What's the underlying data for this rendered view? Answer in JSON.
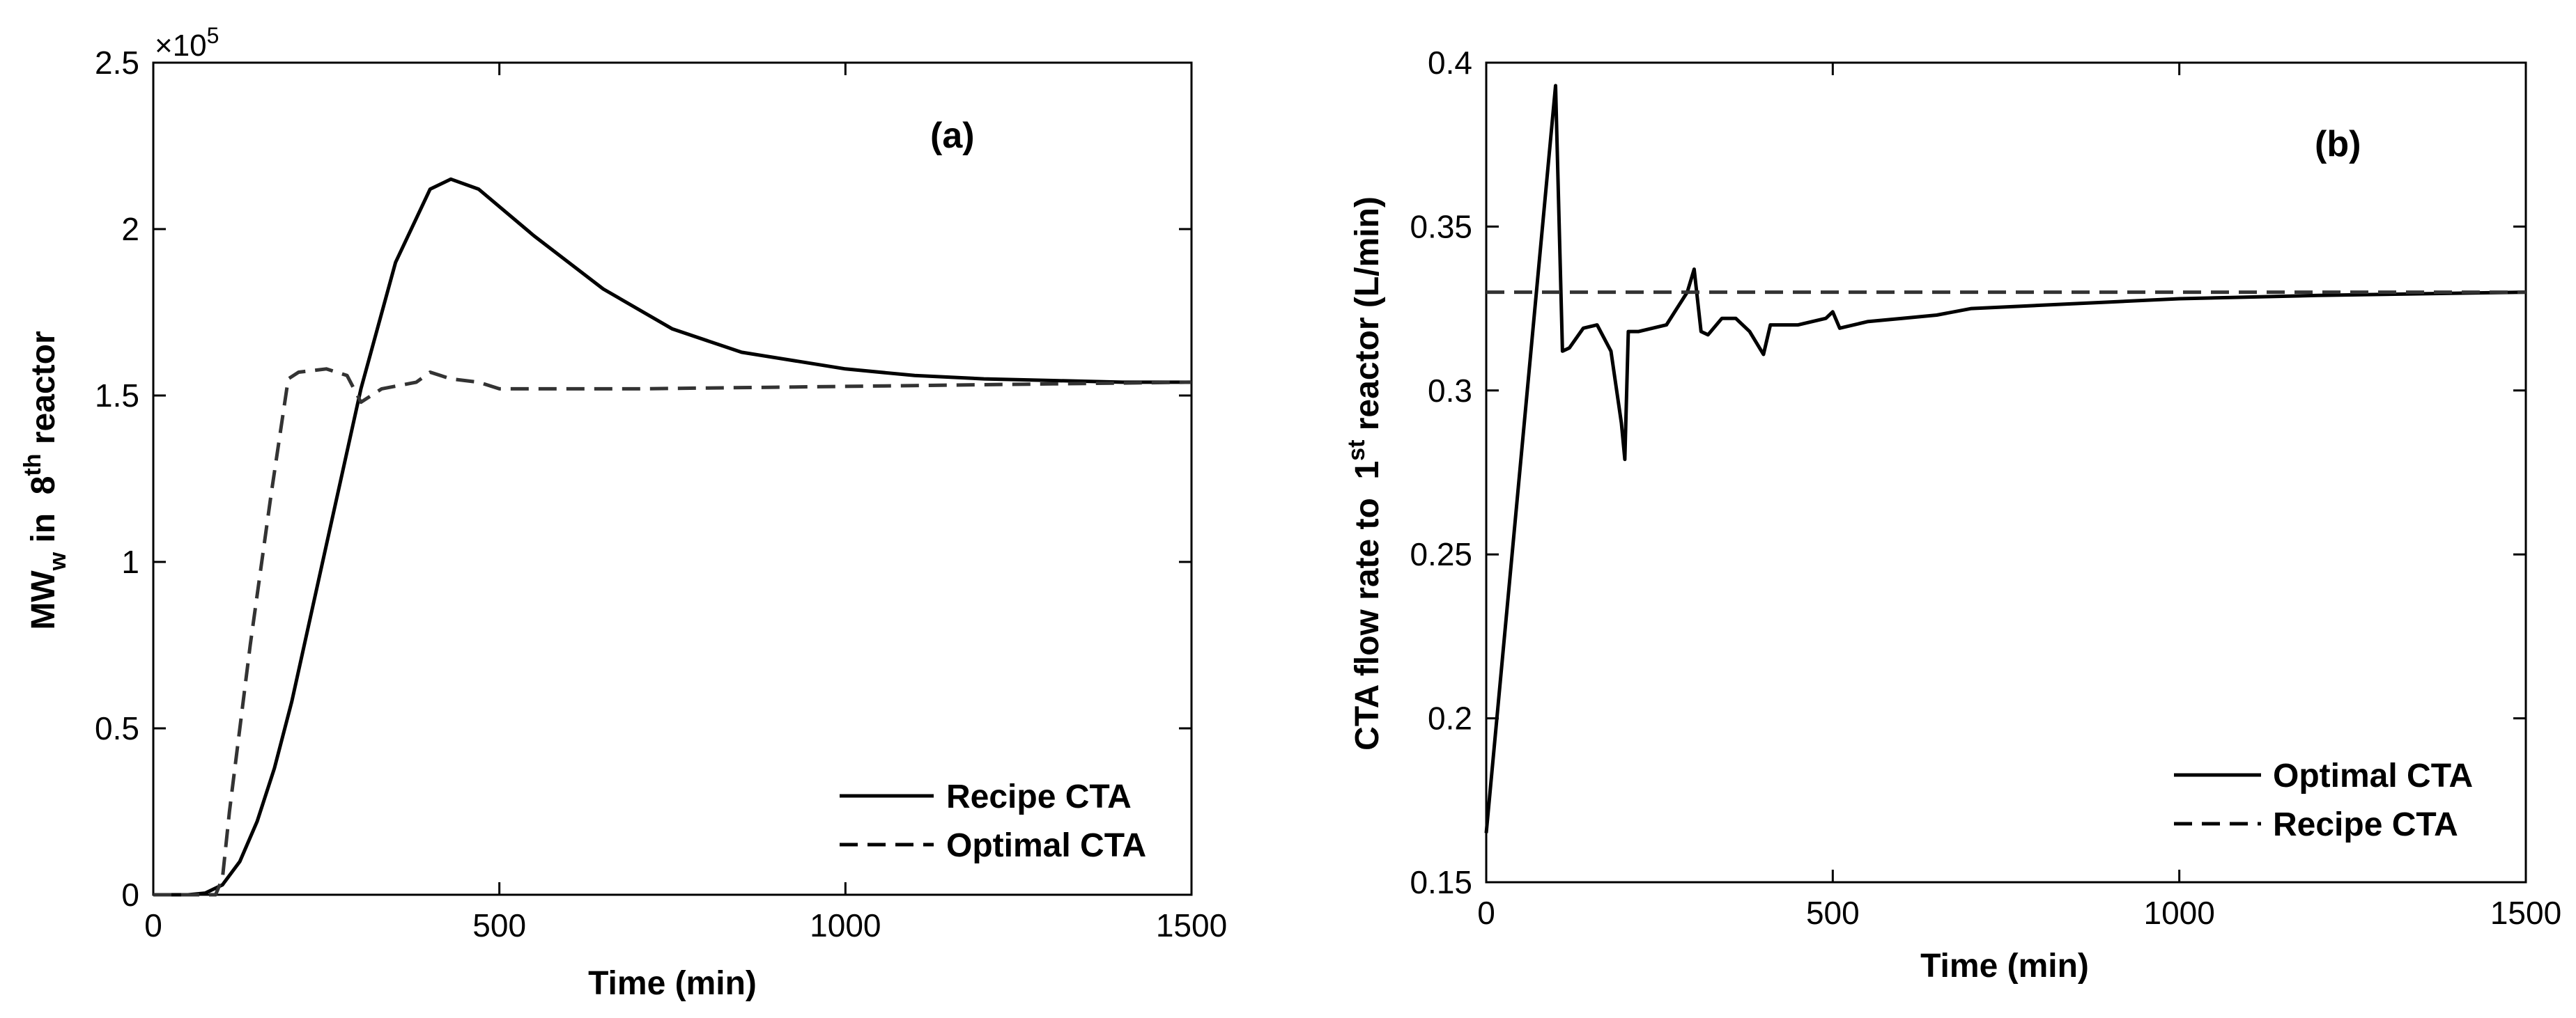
{
  "chart_data": [
    {
      "type": "line",
      "panel_label": "(a)",
      "xlabel": "Time (min)",
      "ylabel": {
        "prefix": "MW",
        "sub": "w",
        "middle": " in  8",
        "sup": "th",
        "suffix": " reactor"
      },
      "exponent_label": {
        "base": "×10",
        "power": "5"
      },
      "xlim": [
        0,
        1500
      ],
      "ylim": [
        0,
        2.5
      ],
      "xticks": [
        0,
        500,
        1000,
        1500
      ],
      "xtick_labels": [
        "0",
        "500",
        "1000",
        "1500"
      ],
      "yticks": [
        0,
        0.5,
        1,
        1.5,
        2,
        2.5
      ],
      "ytick_labels": [
        "0",
        "0.5",
        "1",
        "1.5",
        "2",
        "2.5"
      ],
      "legend_position": "bottom-right",
      "series": [
        {
          "name": "Recipe CTA",
          "style": "solid",
          "points": [
            [
              0,
              0
            ],
            [
              50,
              0
            ],
            [
              75,
              0.005
            ],
            [
              100,
              0.03
            ],
            [
              125,
              0.1
            ],
            [
              150,
              0.22
            ],
            [
              175,
              0.38
            ],
            [
              200,
              0.58
            ],
            [
              250,
              1.05
            ],
            [
              300,
              1.52
            ],
            [
              350,
              1.9
            ],
            [
              400,
              2.12
            ],
            [
              430,
              2.15
            ],
            [
              470,
              2.12
            ],
            [
              550,
              1.98
            ],
            [
              650,
              1.82
            ],
            [
              750,
              1.7
            ],
            [
              850,
              1.63
            ],
            [
              1000,
              1.58
            ],
            [
              1100,
              1.56
            ],
            [
              1200,
              1.55
            ],
            [
              1300,
              1.545
            ],
            [
              1400,
              1.54
            ],
            [
              1500,
              1.54
            ]
          ]
        },
        {
          "name": "Optimal CTA",
          "style": "dashed",
          "points": [
            [
              0,
              0
            ],
            [
              90,
              0
            ],
            [
              100,
              0.05
            ],
            [
              110,
              0.25
            ],
            [
              140,
              0.75
            ],
            [
              170,
              1.2
            ],
            [
              195,
              1.55
            ],
            [
              210,
              1.57
            ],
            [
              250,
              1.58
            ],
            [
              280,
              1.56
            ],
            [
              300,
              1.48
            ],
            [
              330,
              1.52
            ],
            [
              380,
              1.54
            ],
            [
              400,
              1.57
            ],
            [
              430,
              1.55
            ],
            [
              470,
              1.54
            ],
            [
              500,
              1.52
            ],
            [
              550,
              1.52
            ],
            [
              700,
              1.52
            ],
            [
              900,
              1.525
            ],
            [
              1100,
              1.53
            ],
            [
              1300,
              1.535
            ],
            [
              1500,
              1.54
            ]
          ]
        }
      ]
    },
    {
      "type": "line",
      "panel_label": "(b)",
      "xlabel": "Time (min)",
      "ylabel": {
        "prefix": "CTA flow rate to  1",
        "sup": "st",
        "suffix": " reactor (L/min)"
      },
      "xlim": [
        0,
        1500
      ],
      "ylim": [
        0.15,
        0.4
      ],
      "xticks": [
        0,
        500,
        1000,
        1500
      ],
      "xtick_labels": [
        "0",
        "500",
        "1000",
        "1500"
      ],
      "yticks": [
        0.15,
        0.2,
        0.25,
        0.3,
        0.35,
        0.4
      ],
      "ytick_labels": [
        "0.15",
        "0.2",
        "0.25",
        "0.3",
        "0.35",
        "0.4"
      ],
      "legend_position": "bottom-right",
      "series": [
        {
          "name": "Optimal CTA",
          "style": "solid",
          "points": [
            [
              0,
              0.165
            ],
            [
              100,
              0.393
            ],
            [
              110,
              0.312
            ],
            [
              120,
              0.313
            ],
            [
              140,
              0.319
            ],
            [
              160,
              0.32
            ],
            [
              180,
              0.312
            ],
            [
              195,
              0.29
            ],
            [
              200,
              0.279
            ],
            [
              205,
              0.318
            ],
            [
              220,
              0.318
            ],
            [
              260,
              0.32
            ],
            [
              290,
              0.33
            ],
            [
              300,
              0.337
            ],
            [
              310,
              0.318
            ],
            [
              320,
              0.317
            ],
            [
              340,
              0.322
            ],
            [
              360,
              0.322
            ],
            [
              380,
              0.318
            ],
            [
              400,
              0.311
            ],
            [
              410,
              0.32
            ],
            [
              450,
              0.32
            ],
            [
              490,
              0.322
            ],
            [
              500,
              0.324
            ],
            [
              510,
              0.319
            ],
            [
              550,
              0.321
            ],
            [
              600,
              0.322
            ],
            [
              650,
              0.323
            ],
            [
              700,
              0.325
            ],
            [
              800,
              0.326
            ],
            [
              900,
              0.327
            ],
            [
              1000,
              0.328
            ],
            [
              1200,
              0.329
            ],
            [
              1500,
              0.33
            ]
          ]
        },
        {
          "name": "Recipe CTA",
          "style": "dashed",
          "points": [
            [
              0,
              0.33
            ],
            [
              1500,
              0.33
            ]
          ]
        }
      ]
    }
  ]
}
